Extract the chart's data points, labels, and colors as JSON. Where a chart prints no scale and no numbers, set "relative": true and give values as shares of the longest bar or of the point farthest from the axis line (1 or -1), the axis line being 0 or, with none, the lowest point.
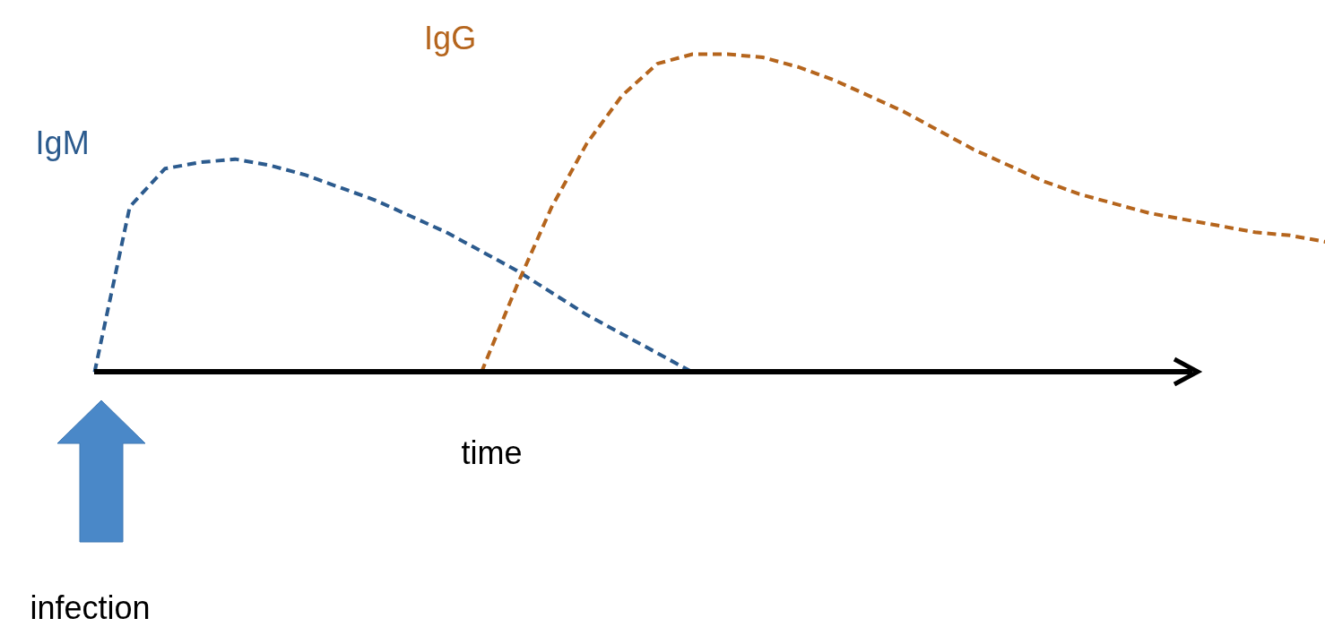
{
  "chart_data": {
    "type": "line",
    "relative": true,
    "xlabel": "time",
    "annotations": [
      "infection"
    ],
    "legend": false,
    "line_style": "dashed",
    "categories": [
      null,
      null,
      null,
      null,
      null,
      null,
      null,
      null,
      null,
      null,
      null,
      null,
      null,
      null,
      null,
      null,
      null,
      null,
      null,
      null,
      null,
      null,
      null,
      null,
      null,
      null,
      null,
      null,
      null,
      null,
      null,
      null,
      null,
      null,
      null,
      null
    ],
    "series": [
      {
        "name": "IgM",
        "color": "#2c5b8e",
        "values": [
          0,
          0.52,
          0.64,
          0.66,
          0.67,
          0.65,
          0.62,
          0.58,
          0.54,
          0.49,
          0.44,
          0.38,
          0.32,
          0.25,
          0.18,
          0.12,
          0.06,
          0,
          null,
          null,
          null,
          null,
          null,
          null,
          null,
          null,
          null,
          null,
          null,
          null,
          null,
          null,
          null,
          null,
          null,
          null
        ]
      },
      {
        "name": "IgG",
        "color": "#b5651d",
        "values": [
          null,
          null,
          null,
          null,
          null,
          null,
          null,
          null,
          null,
          null,
          null,
          0,
          0.27,
          0.52,
          0.72,
          0.87,
          0.97,
          1,
          1,
          0.99,
          0.96,
          0.92,
          0.87,
          0.82,
          0.76,
          0.7,
          0.65,
          0.6,
          0.56,
          0.53,
          0.5,
          0.48,
          0.46,
          0.44,
          0.43,
          0.41
        ]
      }
    ]
  }
}
